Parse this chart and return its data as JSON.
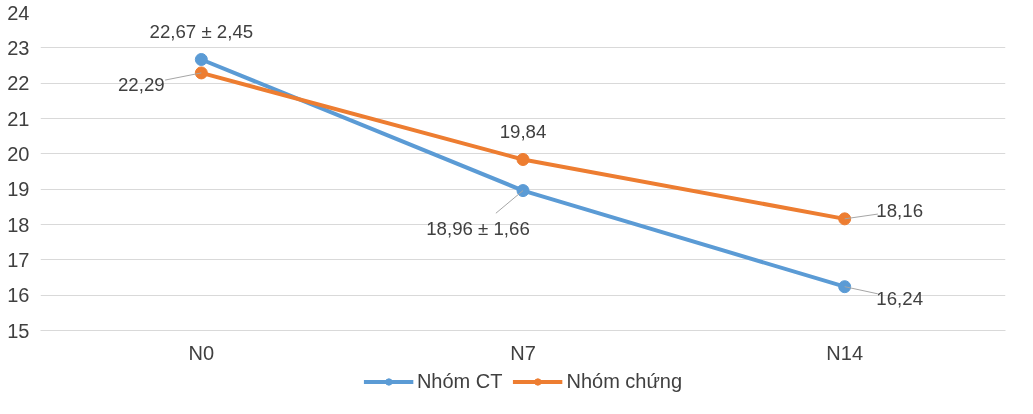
{
  "chart_data": {
    "type": "line",
    "categories": [
      "N0",
      "N7",
      "N14"
    ],
    "series": [
      {
        "name": "Nhóm CT",
        "color": "#5b9bd5",
        "values": [
          22.67,
          18.96,
          16.24
        ],
        "value_labels": [
          "22,67 ± 2,45",
          "18,96 ± 1,66",
          "16,24"
        ]
      },
      {
        "name": "Nhóm chứng",
        "color": "#ed7d31",
        "values": [
          22.29,
          19.84,
          18.16
        ],
        "value_labels": [
          "22,29",
          "19,84",
          "18,16"
        ]
      }
    ],
    "ylim": [
      15,
      24
    ],
    "yticks": [
      15,
      16,
      17,
      18,
      19,
      20,
      21,
      22,
      23,
      24
    ],
    "grid": "y",
    "legend": "bottom",
    "marker": "circle",
    "line_style": "solid"
  }
}
